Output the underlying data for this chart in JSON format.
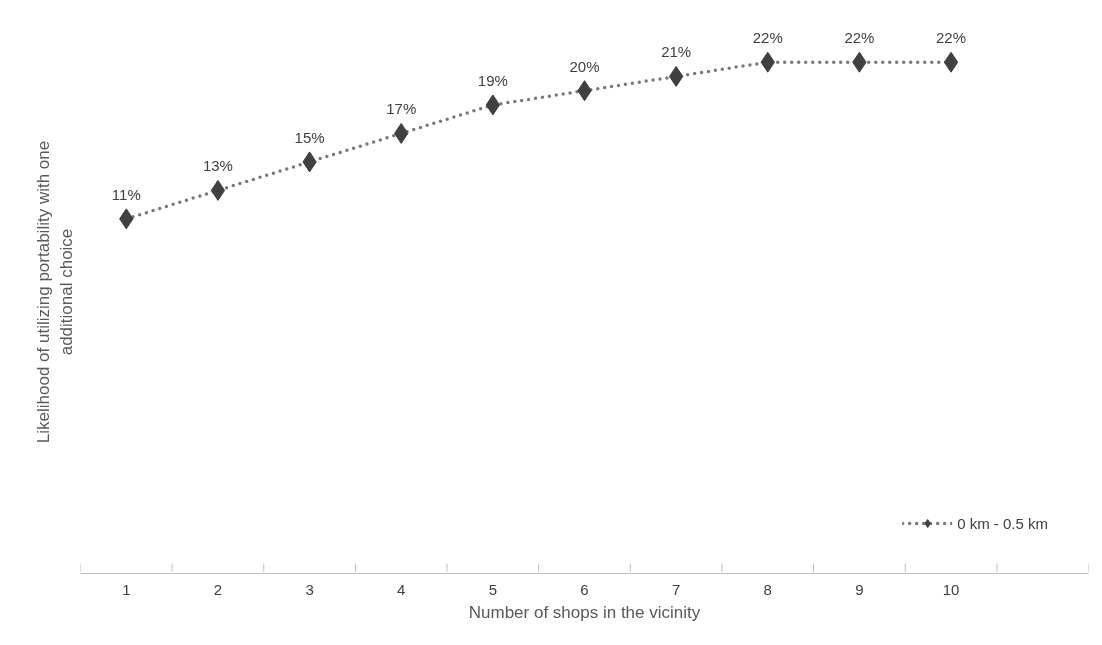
{
  "chart_data": {
    "type": "line",
    "xlabel": "Number of shops in the vicinity",
    "ylabel": "Likelihood of utilizing portability with one\nadditional choice",
    "categories": [
      "1",
      "2",
      "3",
      "4",
      "5",
      "6",
      "7",
      "8",
      "9",
      "10",
      null
    ],
    "series": [
      {
        "name": "0 km - 0.5 km",
        "color": "#404040",
        "values": [
          11,
          13,
          15,
          17,
          19,
          20,
          21,
          22,
          22,
          22,
          null
        ],
        "value_labels": [
          "11%",
          "13%",
          "15%",
          "17%",
          "19%",
          "20%",
          "21%",
          "22%",
          "22%",
          "22%",
          null
        ]
      }
    ],
    "marker": "diamond",
    "line_style": "dotted",
    "legend": "bottom right",
    "grid": false
  }
}
